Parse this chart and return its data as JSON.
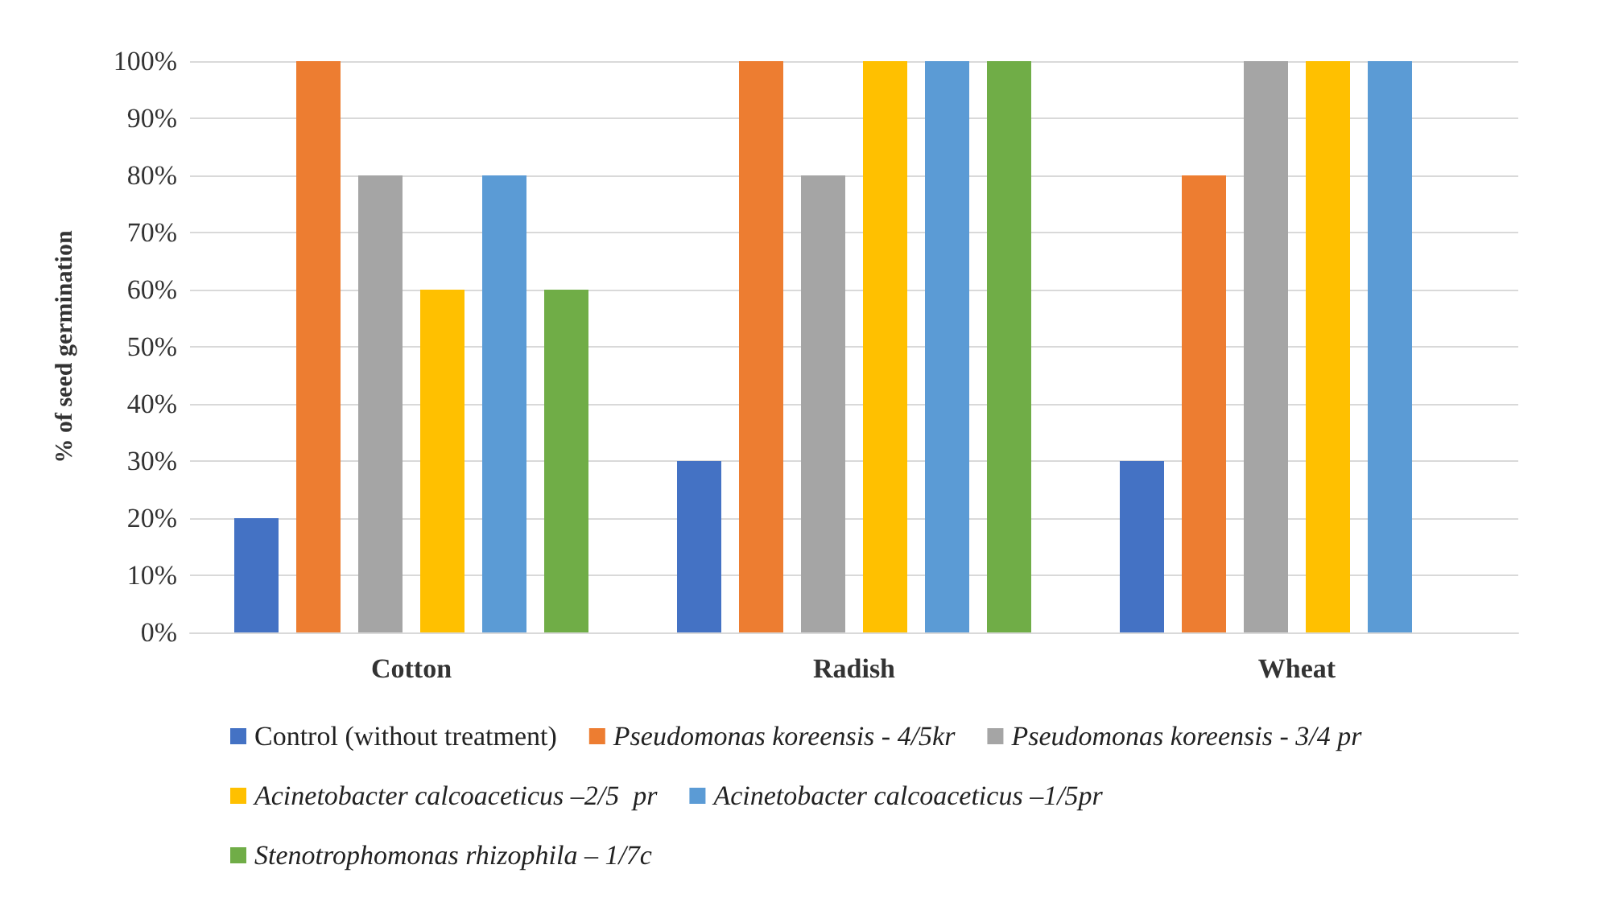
{
  "chart_data": {
    "type": "bar",
    "ylabel": "% of seed germination",
    "categories": [
      "Cotton",
      "Radish",
      "Wheat"
    ],
    "series": [
      {
        "name": "Control (without treatment)",
        "color": "#4472c4",
        "values": [
          20,
          30,
          30
        ]
      },
      {
        "name": "Pseudomonas koreensis - 4/5kr",
        "color": "#ed7d31",
        "values": [
          100,
          100,
          80
        ]
      },
      {
        "name": "Pseudomonas koreensis - 3/4 pr",
        "color": "#a5a5a5",
        "values": [
          80,
          80,
          100
        ]
      },
      {
        "name": "Acinetobacter calcoaceticus –2/5  pr",
        "color": "#ffc000",
        "values": [
          60,
          100,
          100
        ]
      },
      {
        "name": "Acinetobacter calcoaceticus –1/5pr",
        "color": "#5b9bd5",
        "values": [
          80,
          100,
          100
        ]
      },
      {
        "name": "Stenotrophomonas rhizophila – 1/7c",
        "color": "#70ad47",
        "values": [
          60,
          100,
          null
        ]
      }
    ],
    "ylim": [
      0,
      100
    ],
    "yticks": [
      {
        "value": 0,
        "label": "0%"
      },
      {
        "value": 10,
        "label": "10%"
      },
      {
        "value": 20,
        "label": "20%"
      },
      {
        "value": 30,
        "label": "30%"
      },
      {
        "value": 40,
        "label": "40%"
      },
      {
        "value": 50,
        "label": "50%"
      },
      {
        "value": 60,
        "label": "60%"
      },
      {
        "value": 70,
        "label": "70%"
      },
      {
        "value": 80,
        "label": "80%"
      },
      {
        "value": 90,
        "label": "90%"
      },
      {
        "value": 100,
        "label": "100%"
      }
    ],
    "grid": "y",
    "legend": "bottom"
  }
}
